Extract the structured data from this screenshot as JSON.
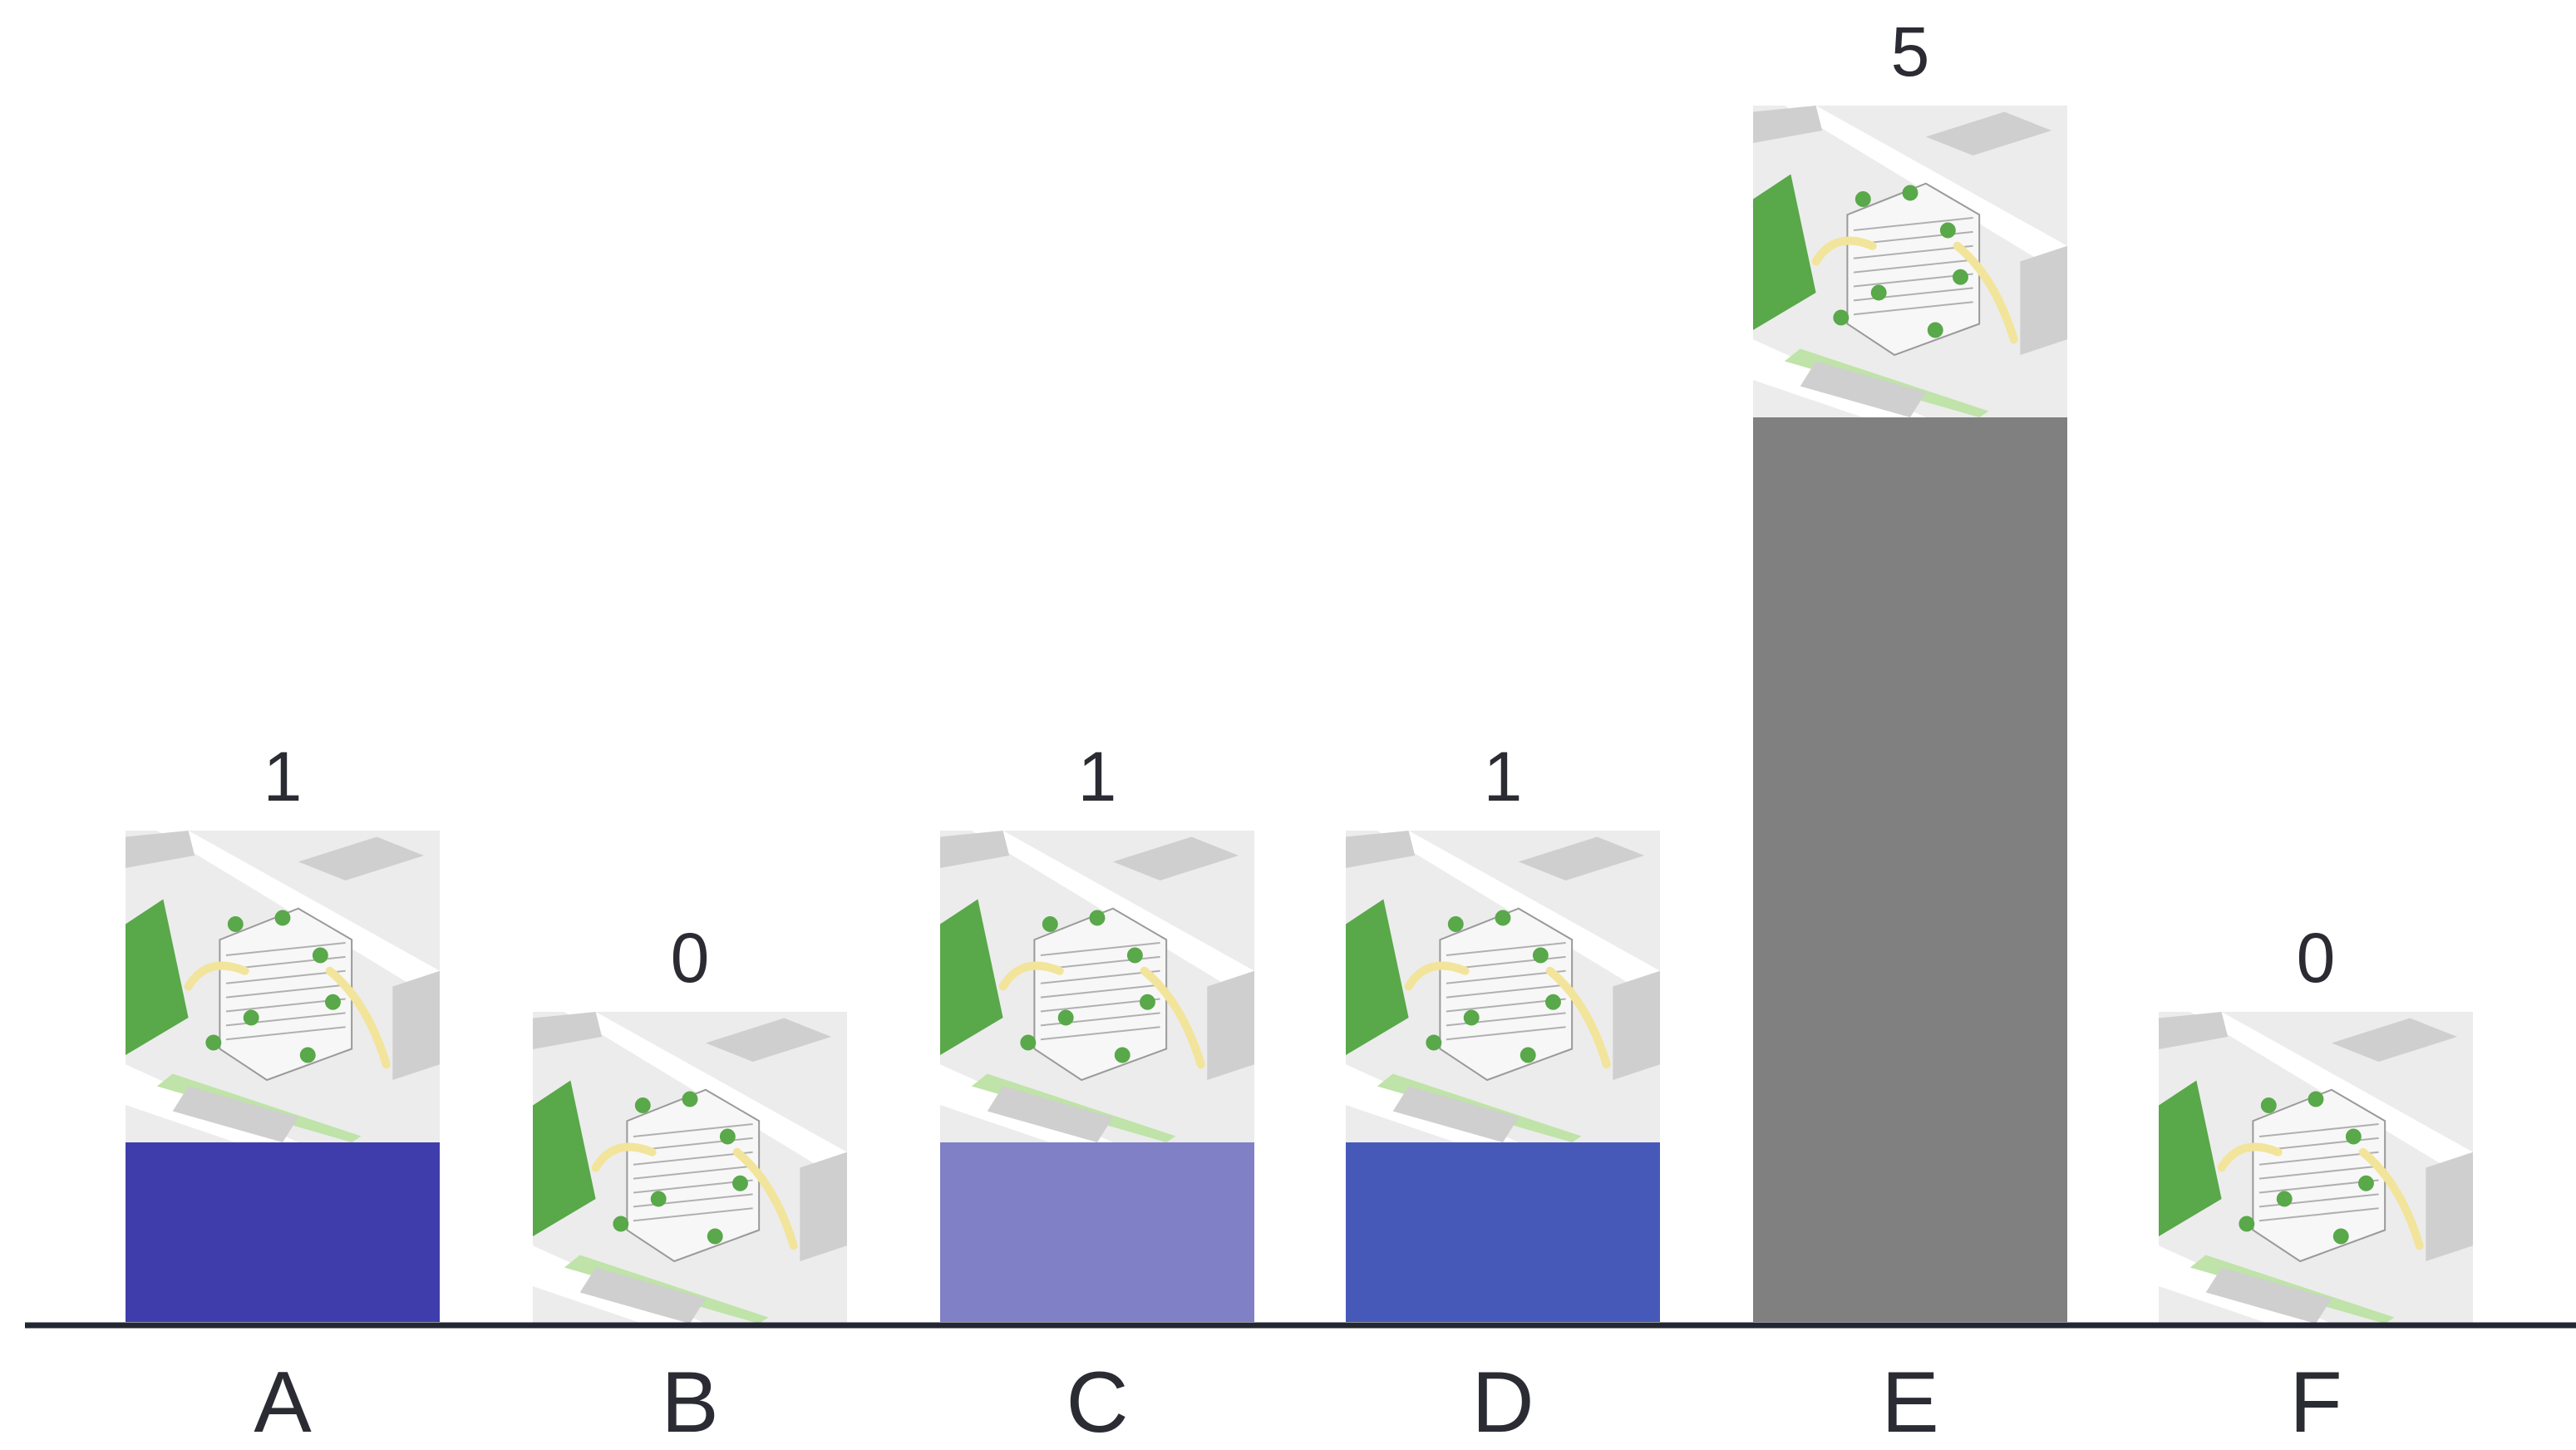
{
  "chart_data": {
    "type": "bar",
    "title": "",
    "xlabel": "",
    "ylabel": "",
    "categories": [
      "A",
      "B",
      "C",
      "D",
      "E",
      "F"
    ],
    "values": [
      1,
      0,
      1,
      1,
      5,
      0
    ],
    "value_labels": [
      "1",
      "0",
      "1",
      "1",
      "5",
      "0"
    ],
    "bar_colors": [
      "#3f3dac",
      "#3f3dac",
      "#8080c6",
      "#4759b8",
      "#808080",
      "#808080"
    ],
    "ylim": [
      0,
      5
    ],
    "grid": false,
    "legend": "none",
    "thumbnail_icons": [
      "building-render-icon",
      "building-render-icon",
      "building-render-icon",
      "building-render-icon",
      "building-render-icon",
      "building-render-icon"
    ]
  },
  "colors": {
    "axis": "#232633",
    "text": "#2b2b33",
    "thumb_ground": "#ececec",
    "thumb_building": "#cfcfcf",
    "thumb_green": "#59a84a",
    "thumb_lightgreen": "#bfe3a8",
    "thumb_arrow": "#f2e49a"
  }
}
